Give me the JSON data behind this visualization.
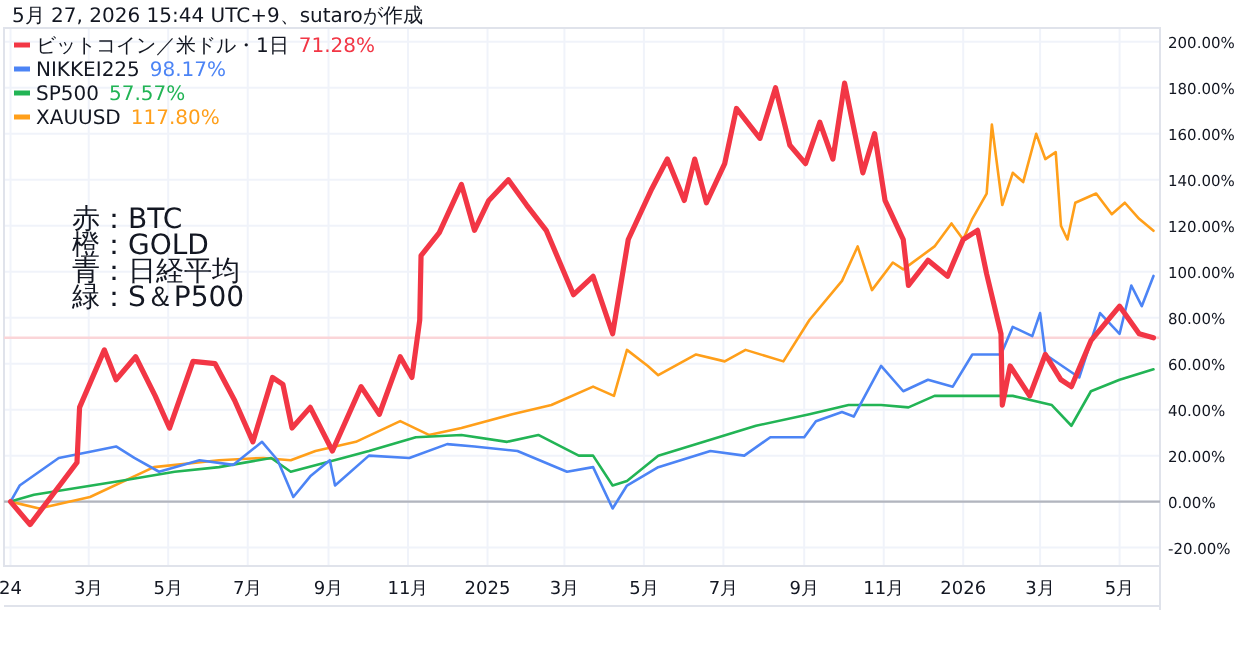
{
  "chart_data": {
    "type": "line",
    "title": "5月 27, 2026 15:44 UTC+9、sutaroが作成",
    "annotations": [
      "赤：BTC",
      "橙：GOLD",
      "青：日経平均",
      "緑：S＆P500",
      "71.28%",
      "98.17%",
      "57.57%",
      "117.80%"
    ],
    "xlim": [
      "2023-12-27",
      "2026-06-01"
    ],
    "ylim": [
      -28,
      206
    ],
    "xticks": [
      {
        "value": "2024-01-01",
        "label": "24"
      },
      {
        "value": "2024-03-01",
        "label": "3月"
      },
      {
        "value": "2024-05-01",
        "label": "5月"
      },
      {
        "value": "2024-07-01",
        "label": "7月"
      },
      {
        "value": "2024-09-01",
        "label": "9月"
      },
      {
        "value": "2024-11-01",
        "label": "11月"
      },
      {
        "value": "2025-01-01",
        "label": "2025"
      },
      {
        "value": "2025-03-01",
        "label": "3月"
      },
      {
        "value": "2025-05-01",
        "label": "5月"
      },
      {
        "value": "2025-07-01",
        "label": "7月"
      },
      {
        "value": "2025-09-01",
        "label": "9月"
      },
      {
        "value": "2025-11-01",
        "label": "11月"
      },
      {
        "value": "2026-01-01",
        "label": "2026"
      },
      {
        "value": "2026-03-01",
        "label": "3月"
      },
      {
        "value": "2026-05-01",
        "label": "5月"
      }
    ],
    "yticks": [
      {
        "value": -20,
        "label": "-20.00%"
      },
      {
        "value": 0,
        "label": "0.00%"
      },
      {
        "value": 20,
        "label": "20.00%"
      },
      {
        "value": 40,
        "label": "40.00%"
      },
      {
        "value": 60,
        "label": "60.00%"
      },
      {
        "value": 80,
        "label": "80.00%"
      },
      {
        "value": 100,
        "label": "100.00%"
      },
      {
        "value": 120,
        "label": "120.00%"
      },
      {
        "value": 140,
        "label": "140.00%"
      },
      {
        "value": 160,
        "label": "160.00%"
      },
      {
        "value": 180,
        "label": "180.00%"
      },
      {
        "value": 200,
        "label": "200.00%"
      }
    ],
    "grid": true,
    "legend": "top left",
    "ref_lines": [
      {
        "axis": "y",
        "value": 0,
        "color": "#b2b5be"
      },
      {
        "axis": "y",
        "value": 71.28,
        "color": "#fbd5d8"
      }
    ],
    "series": [
      {
        "name": "ビットコイン／米ドル・1日",
        "color": "#f23645",
        "x": [
          "2024-01-01",
          "2024-01-16",
          "2024-02-21",
          "2024-02-23",
          "2024-03-13",
          "2024-03-22",
          "2024-04-06",
          "2024-04-21",
          "2024-05-02",
          "2024-05-20",
          "2024-06-06",
          "2024-06-21",
          "2024-07-05",
          "2024-07-20",
          "2024-07-28",
          "2024-08-04",
          "2024-08-18",
          "2024-09-04",
          "2024-09-26",
          "2024-10-10",
          "2024-10-26",
          "2024-11-04",
          "2024-11-10",
          "2024-11-11",
          "2024-11-25",
          "2024-12-12",
          "2024-12-22",
          "2025-01-02",
          "2025-01-17",
          "2025-01-31",
          "2025-02-15",
          "2025-03-08",
          "2025-03-23",
          "2025-04-07",
          "2025-04-19",
          "2025-05-07",
          "2025-05-19",
          "2025-06-01",
          "2025-06-09",
          "2025-06-18",
          "2025-07-02",
          "2025-07-11",
          "2025-07-29",
          "2025-08-10",
          "2025-08-21",
          "2025-09-02",
          "2025-09-13",
          "2025-09-23",
          "2025-10-02",
          "2025-10-16",
          "2025-10-25",
          "2025-11-02",
          "2025-11-16",
          "2025-11-20",
          "2025-12-05",
          "2025-12-20",
          "2026-01-01",
          "2026-01-12",
          "2026-01-19",
          "2026-01-30",
          "2026-01-31",
          "2026-02-06",
          "2026-02-21",
          "2026-03-05",
          "2026-03-17",
          "2026-03-25",
          "2026-04-09",
          "2026-05-01",
          "2026-05-16",
          "2026-05-27"
        ],
        "values": [
          0,
          -10,
          17,
          41,
          66,
          53,
          63,
          46,
          32,
          61,
          60,
          44,
          26,
          54,
          51,
          32,
          41,
          22,
          50,
          38,
          63,
          54,
          79,
          107,
          117,
          138,
          118,
          131,
          140,
          129,
          118,
          90,
          98,
          73,
          114,
          136,
          149,
          131,
          149,
          130,
          147,
          171,
          158,
          180,
          155,
          147,
          165,
          149,
          182,
          143,
          160,
          131,
          114,
          94,
          105,
          98,
          114,
          118,
          99,
          73,
          42,
          59,
          46,
          64,
          53,
          50,
          70,
          85,
          73,
          71.28
        ]
      },
      {
        "name": "NIKKEI225",
        "color": "#4c84f5",
        "x": [
          "2024-01-01",
          "2024-01-08",
          "2024-02-07",
          "2024-03-05",
          "2024-03-22",
          "2024-04-05",
          "2024-04-24",
          "2024-05-25",
          "2024-06-20",
          "2024-07-12",
          "2024-07-24",
          "2024-08-05",
          "2024-08-18",
          "2024-09-02",
          "2024-09-06",
          "2024-10-02",
          "2024-11-02",
          "2024-12-01",
          "2024-12-22",
          "2025-01-24",
          "2025-03-03",
          "2025-03-23",
          "2025-04-07",
          "2025-04-18",
          "2025-05-12",
          "2025-06-21",
          "2025-07-17",
          "2025-08-06",
          "2025-09-01",
          "2025-09-10",
          "2025-09-30",
          "2025-10-09",
          "2025-10-30",
          "2025-11-16",
          "2025-12-05",
          "2025-12-24",
          "2026-01-08",
          "2026-01-30",
          "2026-02-08",
          "2026-02-23",
          "2026-03-01",
          "2026-03-05",
          "2026-03-31",
          "2026-04-16",
          "2026-05-01",
          "2026-05-10",
          "2026-05-18",
          "2026-05-27"
        ],
        "values": [
          0,
          7,
          19,
          22,
          24,
          19,
          13,
          18,
          16,
          26,
          18,
          2,
          11,
          18,
          7,
          20,
          19,
          25,
          24,
          22,
          13,
          15,
          -3,
          7,
          15,
          22,
          20,
          28,
          28,
          35,
          39,
          37,
          59,
          48,
          53,
          50,
          64,
          64,
          76,
          72,
          82,
          64,
          54,
          82,
          73,
          94,
          85,
          98.17
        ]
      },
      {
        "name": "SP500",
        "color": "#22b455",
        "x": [
          "2024-01-01",
          "2024-01-19",
          "2024-03-25",
          "2024-05-06",
          "2024-06-09",
          "2024-07-19",
          "2024-08-03",
          "2024-09-12",
          "2024-10-02",
          "2024-11-07",
          "2024-12-12",
          "2025-01-16",
          "2025-02-09",
          "2025-03-12",
          "2025-03-23",
          "2025-04-07",
          "2025-04-18",
          "2025-05-12",
          "2025-06-16",
          "2025-07-26",
          "2025-09-05",
          "2025-10-05",
          "2025-10-30",
          "2025-11-20",
          "2025-12-10",
          "2026-01-15",
          "2026-02-08",
          "2026-03-10",
          "2026-03-25",
          "2026-04-09",
          "2026-05-01",
          "2026-05-27"
        ],
        "values": [
          0,
          3,
          9,
          13,
          15,
          19,
          13,
          19,
          22,
          28,
          29,
          26,
          29,
          20,
          20,
          7,
          9,
          20,
          26,
          33,
          38,
          42,
          42,
          41,
          46,
          46,
          46,
          42,
          33,
          48,
          53,
          57.57
        ]
      },
      {
        "name": "XAUUSD",
        "color": "#ff9f1a",
        "x": [
          "2024-01-01",
          "2024-01-23",
          "2024-03-02",
          "2024-04-20",
          "2024-06-09",
          "2024-07-13",
          "2024-08-03",
          "2024-08-22",
          "2024-09-22",
          "2024-10-26",
          "2024-11-17",
          "2024-12-12",
          "2025-01-20",
          "2025-02-19",
          "2025-03-23",
          "2025-04-08",
          "2025-04-18",
          "2025-05-04",
          "2025-05-12",
          "2025-06-10",
          "2025-07-02",
          "2025-07-18",
          "2025-08-16",
          "2025-09-05",
          "2025-09-30",
          "2025-10-12",
          "2025-10-23",
          "2025-11-08",
          "2025-11-16",
          "2025-12-10",
          "2025-12-23",
          "2026-01-01",
          "2026-01-08",
          "2026-01-19",
          "2026-01-23",
          "2026-01-31",
          "2026-02-08",
          "2026-02-16",
          "2026-02-26",
          "2026-03-05",
          "2026-03-13",
          "2026-03-17",
          "2026-03-22",
          "2026-03-28",
          "2026-04-13",
          "2026-04-25",
          "2026-05-05",
          "2026-05-16",
          "2026-05-27"
        ],
        "values": [
          0,
          -3,
          2,
          15,
          18,
          19,
          18,
          22,
          26,
          35,
          29,
          32,
          38,
          42,
          50,
          46,
          66,
          59,
          55,
          64,
          61,
          66,
          61,
          79,
          96,
          111,
          92,
          104,
          101,
          111,
          121,
          114,
          123,
          134,
          164,
          129,
          143,
          139,
          160,
          149,
          152,
          120,
          114,
          130,
          134,
          125,
          130,
          123,
          117.8
        ]
      }
    ]
  }
}
